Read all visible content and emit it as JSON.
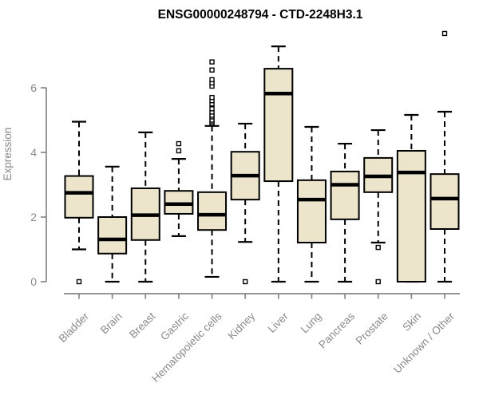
{
  "chart_data": {
    "type": "boxplot",
    "title": "ENSG00000248794 - CTD-2248H3.1",
    "ylabel": "Expression",
    "xlabel": "",
    "ylim": [
      0,
      7.8
    ],
    "yticks": [
      0,
      2,
      4,
      6
    ],
    "grid": false,
    "legend": "none",
    "categories": [
      "Bladder",
      "Brain",
      "Breast",
      "Gastric",
      "Hematopoietic cells",
      "Kidney",
      "Liver",
      "Lung",
      "Pancreas",
      "Prostate",
      "Skin",
      "Unknown / Other"
    ],
    "series": [
      {
        "name": "Bladder",
        "whisker_low": 1.0,
        "q1": 1.98,
        "median": 2.75,
        "q3": 3.27,
        "whisker_high": 4.95,
        "outliers": [
          0
        ]
      },
      {
        "name": "Brain",
        "whisker_low": 0.0,
        "q1": 0.87,
        "median": 1.31,
        "q3": 2.0,
        "whisker_high": 3.56,
        "outliers": []
      },
      {
        "name": "Breast",
        "whisker_low": 0.0,
        "q1": 1.29,
        "median": 2.06,
        "q3": 2.89,
        "whisker_high": 4.62,
        "outliers": []
      },
      {
        "name": "Gastric",
        "whisker_low": 1.41,
        "q1": 2.1,
        "median": 2.4,
        "q3": 2.81,
        "whisker_high": 3.8,
        "outliers": [
          4.05,
          4.27
        ]
      },
      {
        "name": "Hematopoietic cells",
        "whisker_low": 0.15,
        "q1": 1.6,
        "median": 2.07,
        "q3": 2.77,
        "whisker_high": 4.82,
        "outliers": [
          4.9,
          4.95,
          5.0,
          5.1,
          5.15,
          5.25,
          5.35,
          5.5,
          5.6,
          5.7,
          6.05,
          6.15,
          6.25,
          6.55,
          6.8
        ]
      },
      {
        "name": "Kidney",
        "whisker_low": 1.23,
        "q1": 2.54,
        "median": 3.28,
        "q3": 4.02,
        "whisker_high": 4.89,
        "outliers": [
          0
        ]
      },
      {
        "name": "Liver",
        "whisker_low": 0.0,
        "q1": 3.11,
        "median": 5.82,
        "q3": 6.59,
        "whisker_high": 7.28,
        "outliers": []
      },
      {
        "name": "Lung",
        "whisker_low": 0.0,
        "q1": 1.21,
        "median": 2.54,
        "q3": 3.14,
        "whisker_high": 4.79,
        "outliers": []
      },
      {
        "name": "Pancreas",
        "whisker_low": 0.0,
        "q1": 1.93,
        "median": 3.0,
        "q3": 3.41,
        "whisker_high": 4.27,
        "outliers": []
      },
      {
        "name": "Prostate",
        "whisker_low": 1.21,
        "q1": 2.77,
        "median": 3.26,
        "q3": 3.83,
        "whisker_high": 4.69,
        "outliers": [
          1.06,
          0
        ]
      },
      {
        "name": "Skin",
        "whisker_low": 0.0,
        "q1": 0.0,
        "median": 3.38,
        "q3": 4.05,
        "whisker_high": 5.16,
        "outliers": []
      },
      {
        "name": "Unknown / Other",
        "whisker_low": 0.0,
        "q1": 1.63,
        "median": 2.57,
        "q3": 3.33,
        "whisker_high": 5.26,
        "outliers": [
          7.68
        ]
      }
    ],
    "colors": {
      "box_fill": "#ece5cb",
      "box_stroke": "#000000",
      "median": "#000000",
      "whisker": "#000000",
      "outlier_stroke": "#000000",
      "outlier_fill": "#ffffff",
      "axis": "#868686",
      "tick_label": "#8a8a8a",
      "title": "#000000"
    }
  }
}
